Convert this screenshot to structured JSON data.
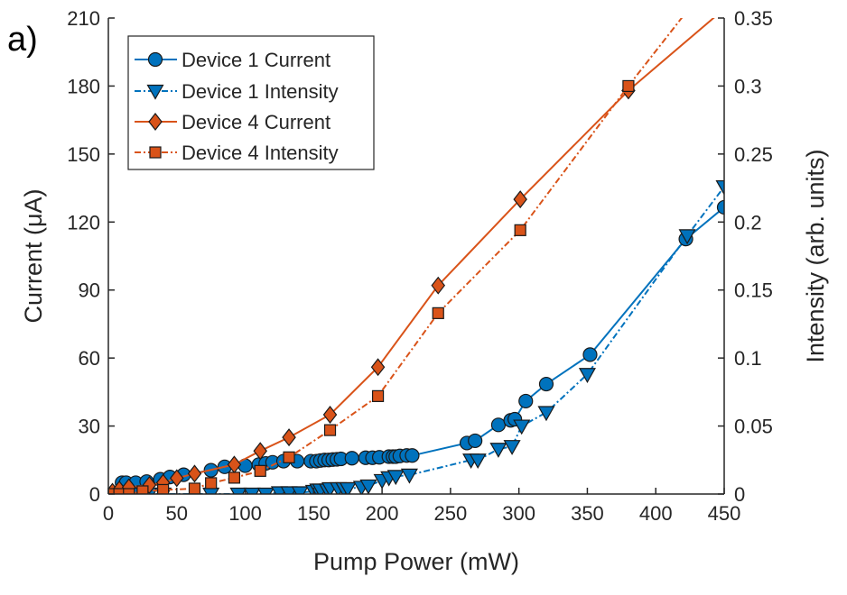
{
  "panel_label": "a)",
  "chart_data": {
    "type": "line",
    "xlabel": "Pump Power (mW)",
    "ylabel_left": "Current (μA)",
    "ylabel_right": "Intensity (arb. units)",
    "xlim": [
      0,
      450
    ],
    "ylim_left": [
      0,
      210
    ],
    "ylim_right": [
      0,
      0.35
    ],
    "x_ticks": [
      "0",
      "50",
      "100",
      "150",
      "200",
      "250",
      "300",
      "350",
      "400",
      "450"
    ],
    "y_left_ticks": [
      "0",
      "30",
      "60",
      "90",
      "120",
      "150",
      "180",
      "210"
    ],
    "y_right_ticks": [
      "0",
      "0.05",
      "0.1",
      "0.15",
      "0.2",
      "0.25",
      "0.3",
      "0.35"
    ],
    "grid": false,
    "legend_position": "top-left",
    "series": [
      {
        "name": "Device 1 Current",
        "axis": "left",
        "color": "#0072BD",
        "marker": "circle",
        "line": "solid",
        "x": [
          10,
          13,
          20,
          28,
          38,
          45,
          55,
          75,
          85,
          100,
          110,
          115,
          120,
          128,
          138,
          148,
          152,
          155,
          158,
          161,
          164,
          167,
          170,
          178,
          188,
          193,
          198,
          205,
          208,
          210,
          213,
          218,
          222,
          262,
          268,
          285,
          294,
          297,
          305,
          320,
          352,
          422,
          450
        ],
        "y": [
          5,
          5,
          5,
          5.5,
          6.5,
          7.5,
          8.5,
          10.5,
          12,
          12.5,
          13,
          13.5,
          14,
          14.5,
          14.5,
          14.5,
          14.5,
          14.8,
          15,
          15,
          15.2,
          15.3,
          15.5,
          15.8,
          16,
          16,
          16.2,
          16.5,
          16.5,
          16.5,
          16.8,
          17,
          17,
          22.5,
          23.5,
          30.5,
          32.5,
          33,
          41,
          48.5,
          61.5,
          112.5,
          126.5
        ]
      },
      {
        "name": "Device 1 Intensity",
        "axis": "right",
        "color": "#0072BD",
        "marker": "triangle-down",
        "line": "dashdot",
        "x": [
          5,
          10,
          20,
          30,
          40,
          75,
          95,
          105,
          115,
          125,
          132,
          140,
          150,
          153,
          155,
          160,
          162,
          168,
          172,
          175,
          185,
          190,
          200,
          205,
          210,
          220,
          265,
          270,
          285,
          295,
          302,
          320,
          350,
          423,
          450
        ],
        "y": [
          0,
          0,
          0,
          0,
          0,
          0,
          0,
          0,
          0,
          0.001,
          0.001,
          0.001,
          0.002,
          0.003,
          0.003,
          0.003,
          0.004,
          0.004,
          0.004,
          0.004,
          0.005,
          0.006,
          0.01,
          0.012,
          0.013,
          0.014,
          0.025,
          0.025,
          0.033,
          0.035,
          0.05,
          0.06,
          0.088,
          0.19,
          0.226
        ]
      },
      {
        "name": "Device 4 Current",
        "axis": "left",
        "color": "#D95319",
        "marker": "diamond",
        "line": "solid",
        "x": [
          3,
          8,
          15,
          30,
          40,
          50,
          63,
          92,
          111,
          132,
          162,
          197,
          241,
          301,
          380,
          450
        ],
        "y": [
          1,
          2,
          3,
          4,
          5,
          7,
          9,
          13,
          19,
          25,
          35,
          56,
          92,
          130,
          178,
          214
        ]
      },
      {
        "name": "Device 4 Intensity",
        "axis": "right",
        "color": "#D95319",
        "marker": "square",
        "line": "dashdot",
        "x": [
          3,
          8,
          15,
          25,
          40,
          63,
          75,
          92,
          111,
          132,
          162,
          197,
          241,
          301,
          380,
          450
        ],
        "y": [
          0,
          0,
          0,
          0.002,
          0.003,
          0.004,
          0.008,
          0.012,
          0.017,
          0.027,
          0.047,
          0.072,
          0.133,
          0.194,
          0.3,
          0.39
        ]
      }
    ]
  }
}
